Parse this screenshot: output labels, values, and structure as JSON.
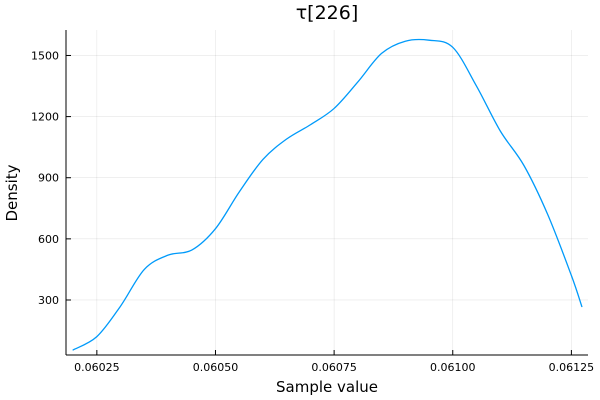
{
  "chart_data": {
    "type": "line",
    "title": "τ[226]",
    "xlabel": "Sample value",
    "ylabel": "Density",
    "xlim": [
      0.060185,
      0.061285
    ],
    "ylim": [
      30,
      1625
    ],
    "xticks": [
      0.06025,
      0.0605,
      0.06075,
      0.061,
      0.06125
    ],
    "xtick_labels": [
      "0.06025",
      "0.06050",
      "0.06075",
      "0.06100",
      "0.06125"
    ],
    "yticks": [
      300,
      600,
      900,
      1200,
      1500
    ],
    "ytick_labels": [
      "300",
      "600",
      "900",
      "1200",
      "1500"
    ],
    "grid": true,
    "legend": "none",
    "colors": {
      "series": "#009AFA"
    },
    "series": [
      {
        "x": [
          0.0602,
          0.06025,
          0.0603,
          0.06035,
          0.0604,
          0.06045,
          0.0605,
          0.06055,
          0.0606,
          0.06065,
          0.0607,
          0.06075,
          0.0608,
          0.06085,
          0.0609,
          0.06095,
          0.061,
          0.06105,
          0.0611,
          0.06115,
          0.0612,
          0.06125,
          0.061272
        ],
        "values": [
          55,
          120,
          270,
          450,
          520,
          545,
          650,
          830,
          990,
          1090,
          1160,
          1240,
          1370,
          1510,
          1570,
          1575,
          1540,
          1350,
          1130,
          960,
          720,
          420,
          268
        ]
      }
    ]
  }
}
